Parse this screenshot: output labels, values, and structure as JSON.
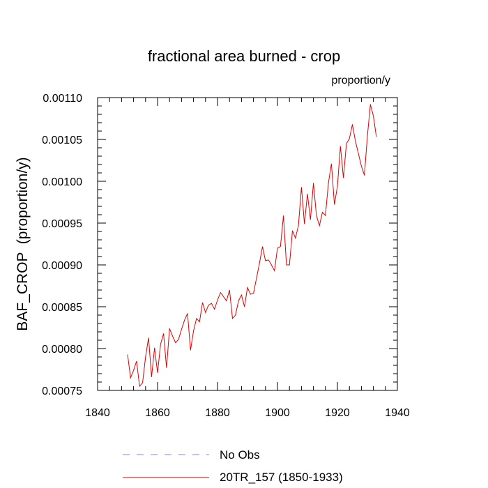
{
  "chart_data": {
    "type": "line",
    "title": "fractional area burned - crop",
    "units": "proportion/y",
    "ylabel": "BAF_CROP  (proportion/y)",
    "xlabel": "",
    "xlim": [
      1840,
      1940
    ],
    "ylim": [
      0.00075,
      0.0011
    ],
    "xticks": [
      1840,
      1860,
      1880,
      1900,
      1920,
      1940
    ],
    "xtick_labels": [
      "1840",
      "1860",
      "1880",
      "1900",
      "1920",
      "1940"
    ],
    "yticks": [
      0.00075,
      0.0008,
      0.00085,
      0.0009,
      0.00095,
      0.001,
      0.00105,
      0.0011
    ],
    "ytick_labels": [
      "0.00075",
      "0.00080",
      "0.00085",
      "0.00090",
      "0.00095",
      "0.00100",
      "0.00105",
      "0.00110"
    ],
    "series": [
      {
        "name": "20TR_157 (1850-1933)",
        "color": "#e00000",
        "x": [
          1850,
          1851,
          1852,
          1853,
          1854,
          1855,
          1856,
          1857,
          1858,
          1859,
          1860,
          1861,
          1862,
          1863,
          1864,
          1865,
          1866,
          1867,
          1868,
          1869,
          1870,
          1871,
          1872,
          1873,
          1874,
          1875,
          1876,
          1877,
          1878,
          1879,
          1880,
          1881,
          1882,
          1883,
          1884,
          1885,
          1886,
          1887,
          1888,
          1889,
          1890,
          1891,
          1892,
          1893,
          1894,
          1895,
          1896,
          1897,
          1898,
          1899,
          1900,
          1901,
          1902,
          1903,
          1904,
          1905,
          1906,
          1907,
          1908,
          1909,
          1910,
          1911,
          1912,
          1913,
          1914,
          1915,
          1916,
          1917,
          1918,
          1919,
          1920,
          1921,
          1922,
          1923,
          1924,
          1925,
          1926,
          1927,
          1928,
          1929,
          1930,
          1931,
          1932,
          1933
        ],
        "values": [
          0.000793,
          0.000765,
          0.000774,
          0.000785,
          0.000755,
          0.000759,
          0.00079,
          0.000813,
          0.000766,
          0.000801,
          0.000771,
          0.000805,
          0.000818,
          0.000777,
          0.000824,
          0.000815,
          0.000807,
          0.000811,
          0.000823,
          0.000834,
          0.000842,
          0.000798,
          0.000821,
          0.000836,
          0.000832,
          0.000855,
          0.000843,
          0.000852,
          0.000854,
          0.000847,
          0.000858,
          0.000867,
          0.000862,
          0.000857,
          0.00087,
          0.000836,
          0.00084,
          0.000857,
          0.000864,
          0.00085,
          0.000873,
          0.000865,
          0.000866,
          0.000884,
          0.000902,
          0.000922,
          0.000905,
          0.000906,
          0.0009,
          0.000893,
          0.00092,
          0.000922,
          0.000959,
          0.0009,
          0.0009,
          0.000941,
          0.000932,
          0.000947,
          0.000993,
          0.000949,
          0.000985,
          0.000954,
          0.000998,
          0.000959,
          0.000947,
          0.000963,
          0.000959,
          0.000998,
          0.001021,
          0.000972,
          0.000994,
          0.001042,
          0.001004,
          0.001045,
          0.001051,
          0.001068,
          0.001048,
          0.001033,
          0.001018,
          0.001007,
          0.001054,
          0.001092,
          0.001078,
          0.001053
        ]
      },
      {
        "name": "No Obs",
        "color": "#8080ff",
        "x": [],
        "values": []
      }
    ],
    "legend_position": "bottom-center"
  }
}
